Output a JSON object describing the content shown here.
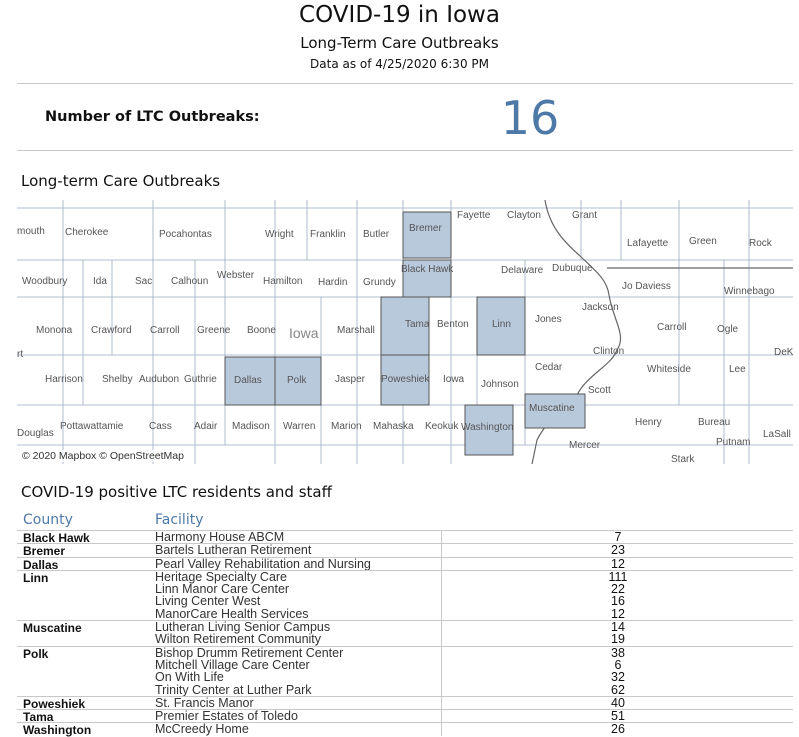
{
  "header": {
    "title": "COVID-19 in Iowa",
    "subtitle": "Long-Term Care Outbreaks",
    "as_of": "Data as of 4/25/2020 6:30 PM"
  },
  "kpi": {
    "label": "Number of LTC Outbreaks:",
    "value": "16",
    "value_color": "#4e79a7"
  },
  "map": {
    "title": "Long-term Care Outbreaks",
    "highlight_color": "#b9c9dc",
    "state_label": "Iowa",
    "attribution": "© 2020 Mapbox  © OpenStreetMap",
    "highlighted_counties": [
      "Bremer",
      "Black Hawk",
      "Tama",
      "Linn",
      "Dallas",
      "Polk",
      "Poweshiek",
      "Washington",
      "Muscatine"
    ],
    "county_labels": [
      "mouth",
      "Cherokee",
      "Pocahontas",
      "Wright",
      "Franklin",
      "Butler",
      "Bremer",
      "Fayette",
      "Clayton",
      "Grant",
      "Lafayette",
      "Green",
      "Rock",
      "Woodbury",
      "Ida",
      "Sac",
      "Calhoun",
      "Webster",
      "Hamilton",
      "Hardin",
      "Grundy",
      "Black Hawk",
      "Delaware",
      "Dubuque",
      "Jo Daviess",
      "Winnebago",
      "Monona",
      "Crawford",
      "Carroll",
      "Greene",
      "Boone",
      "Marshall",
      "Tama",
      "Benton",
      "Linn",
      "Jones",
      "Jackson",
      "Carroll",
      "Ogle",
      "DeK",
      "rt",
      "Harrison",
      "Shelby",
      "Audubon",
      "Guthrie",
      "Dallas",
      "Polk",
      "Jasper",
      "Poweshiek",
      "Iowa",
      "Johnson",
      "Cedar",
      "Clinton",
      "Whiteside",
      "Lee",
      "Scott",
      "Pottawattamie",
      "Cass",
      "Adair",
      "Madison",
      "Warren",
      "Marion",
      "Mahaska",
      "Keokuk",
      "Washington",
      "Muscatine",
      "Henry",
      "Bureau",
      "LaSall",
      "Douglas",
      "Putnam",
      "Mercer",
      "Stark"
    ]
  },
  "table": {
    "title": "COVID-19 positive LTC residents and staff",
    "columns": {
      "county": "County",
      "facility": "Facility"
    },
    "rows": [
      {
        "county": "Black Hawk",
        "facility": "Harmony House ABCM",
        "count": "7"
      },
      {
        "county": "Bremer",
        "facility": "Bartels Lutheran Retirement",
        "count": "23"
      },
      {
        "county": "Dallas",
        "facility": "Pearl Valley Rehabilitation and Nursing",
        "count": "12"
      },
      {
        "county": "Linn",
        "facility": "Heritage Specialty Care",
        "count": "111"
      },
      {
        "county": "",
        "facility": "Linn Manor Care Center",
        "count": "22"
      },
      {
        "county": "",
        "facility": "Living Center West",
        "count": "16"
      },
      {
        "county": "",
        "facility": "ManorCare Health Services",
        "count": "12"
      },
      {
        "county": "Muscatine",
        "facility": "Lutheran Living Senior Campus",
        "count": "14"
      },
      {
        "county": "",
        "facility": "Wilton Retirement Community",
        "count": "19"
      },
      {
        "county": "Polk",
        "facility": "Bishop Drumm Retirement Center",
        "count": "38"
      },
      {
        "county": "",
        "facility": "Mitchell Village Care Center",
        "count": "6"
      },
      {
        "county": "",
        "facility": "On With Life",
        "count": "32"
      },
      {
        "county": "",
        "facility": "Trinity Center at Luther Park",
        "count": "62"
      },
      {
        "county": "Poweshiek",
        "facility": "St. Francis Manor",
        "count": "40"
      },
      {
        "county": "Tama",
        "facility": "Premier Estates of Toledo",
        "count": "51"
      },
      {
        "county": "Washington",
        "facility": "McCreedy Home",
        "count": "26"
      }
    ]
  }
}
